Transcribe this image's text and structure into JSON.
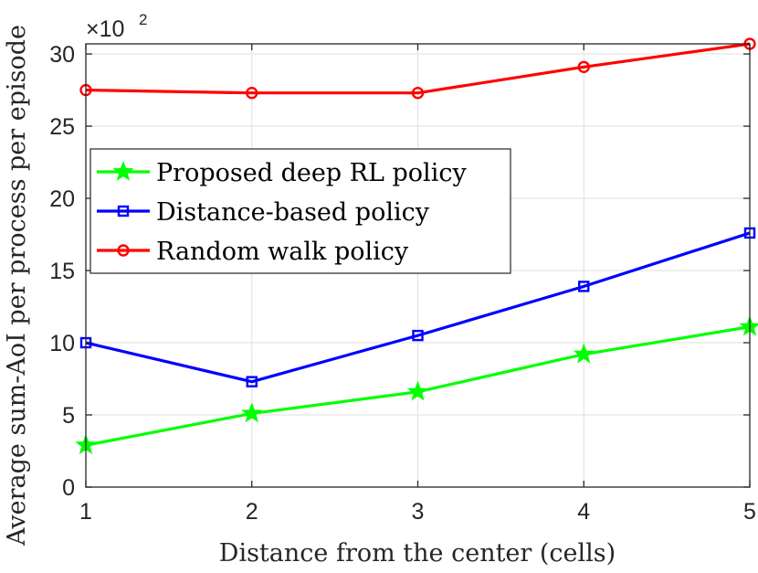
{
  "chart_data": {
    "type": "line",
    "x": [
      1,
      2,
      3,
      4,
      5
    ],
    "xlabel": "Distance from the center (cells)",
    "ylabel": "Average sum-AoI per process per episode",
    "y_exponent_label": "×10",
    "y_exponent_power": "2",
    "xlim": [
      1,
      5
    ],
    "ylim": [
      0,
      30.7
    ],
    "xticks": [
      "1",
      "2",
      "3",
      "4",
      "5"
    ],
    "yticks": [
      "0",
      "5",
      "10",
      "15",
      "20",
      "25",
      "30"
    ],
    "grid": true,
    "legend_position": "upper-left",
    "series": [
      {
        "name": "Proposed deep RL policy",
        "color": "#00ff00",
        "marker": "star",
        "values": [
          2.9,
          5.1,
          6.6,
          9.2,
          11.1
        ]
      },
      {
        "name": "Distance-based policy",
        "color": "#0000ff",
        "marker": "square",
        "values": [
          10.0,
          7.3,
          10.5,
          13.9,
          17.6
        ]
      },
      {
        "name": "Random walk policy",
        "color": "#ff0000",
        "marker": "circle",
        "values": [
          27.5,
          27.3,
          27.3,
          29.1,
          30.7
        ]
      }
    ]
  }
}
